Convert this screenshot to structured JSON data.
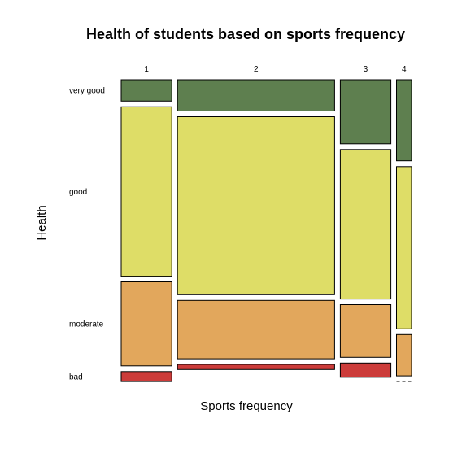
{
  "chart_data": {
    "type": "mosaic",
    "title": "Health of students based on sports frequency",
    "xlabel": "Sports frequency",
    "ylabel": "Health",
    "x_categories": [
      "1",
      "2",
      "3",
      "4"
    ],
    "y_categories": [
      "very good",
      "good",
      "moderate",
      "bad"
    ],
    "x_proportions": [
      0.185,
      0.575,
      0.185,
      0.055
    ],
    "conditional_proportions": [
      [
        0.075,
        0.595,
        0.295,
        0.035
      ],
      [
        0.11,
        0.625,
        0.205,
        0.018
      ],
      [
        0.225,
        0.525,
        0.185,
        0.05
      ],
      [
        0.285,
        0.57,
        0.145,
        0.0
      ]
    ],
    "colors": {
      "very good": "#5e7f4f",
      "good": "#dedd67",
      "moderate": "#e2a75c",
      "bad": "#cc3c3a"
    }
  }
}
